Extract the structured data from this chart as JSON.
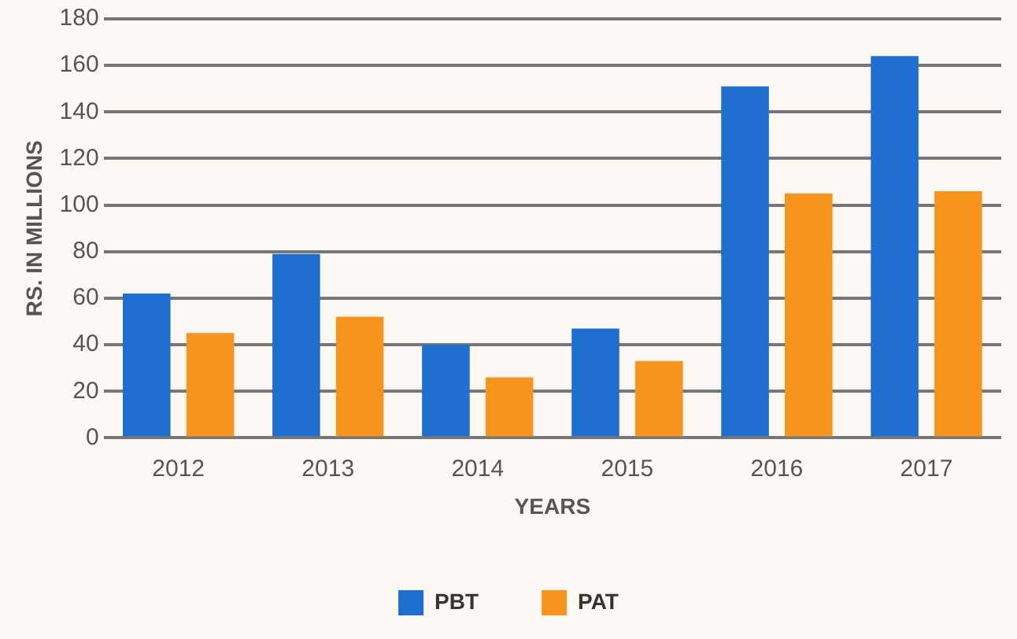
{
  "chart_data": {
    "type": "bar",
    "xlabel": "YEARS",
    "ylabel": "RS. IN MILLIONS",
    "categories": [
      "2012",
      "2013",
      "2014",
      "2015",
      "2016",
      "2017"
    ],
    "series": [
      {
        "name": "PBT",
        "color": "#1f6fd0",
        "values": [
          62,
          79,
          40,
          47,
          151,
          164
        ]
      },
      {
        "name": "PAT",
        "color": "#f7941d",
        "values": [
          45,
          52,
          26,
          33,
          105,
          106
        ]
      }
    ],
    "ylim": [
      0,
      180
    ],
    "yticks": [
      0,
      20,
      40,
      60,
      80,
      100,
      120,
      140,
      160,
      180
    ],
    "grid": "y",
    "legend": "bottom"
  }
}
